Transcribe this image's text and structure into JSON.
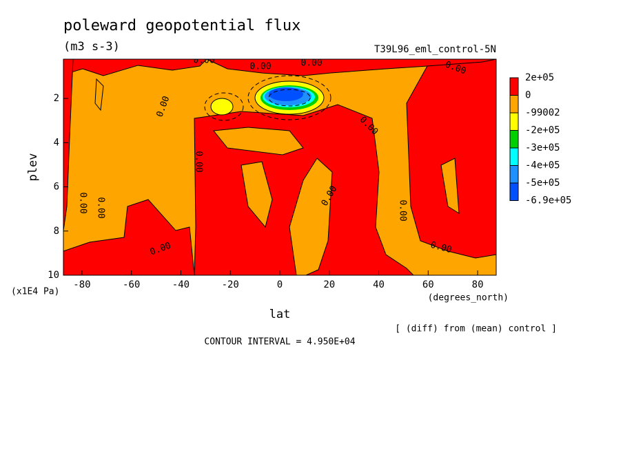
{
  "chart_data": {
    "type": "contour",
    "title": "poleward geopotential flux",
    "subtitle": "(m3 s-3)",
    "dataset_label": "T39L96_eml_control-5N",
    "x_label": "lat",
    "x_units": "(degrees_north)",
    "y_label": "plev",
    "y_units": "(x1E4 Pa)",
    "xlim": [
      -87.5,
      87.5
    ],
    "xticks": [
      -80,
      -60,
      -40,
      -20,
      0,
      20,
      40,
      60,
      80
    ],
    "ylim": [
      0.22,
      10
    ],
    "yticks": [
      2,
      4,
      6,
      8,
      10
    ],
    "y_inverted": true,
    "levels": [
      {
        "value": 200000,
        "label": "2e+05"
      },
      0,
      -99002,
      {
        "value": -200000,
        "label": "-2e+05"
      },
      {
        "value": -300000,
        "label": "-3e+05"
      },
      {
        "value": -400000,
        "label": "-4e+05"
      },
      {
        "value": -500000,
        "label": "-5e+05"
      },
      {
        "value": -690000,
        "label": "-6.9e+05"
      }
    ],
    "colors": [
      "#ff0000",
      "#ffa500",
      "#ffff00",
      "#00d000",
      "#00ffff",
      "#1e90ff",
      "#0050ff"
    ],
    "contour_label": "0.00",
    "note": "[ (diff) from (mean) control ]",
    "contour_interval": "CONTOUR INTERVAL = 4.950E+04"
  }
}
